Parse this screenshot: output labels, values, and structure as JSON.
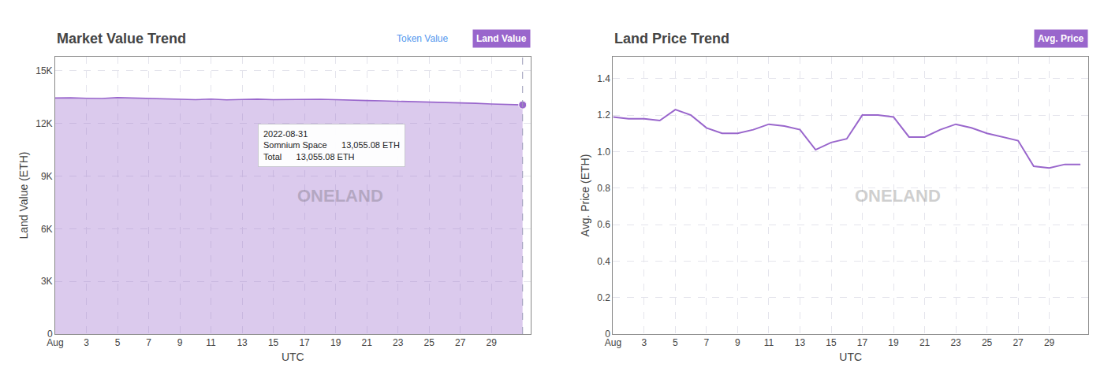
{
  "chart_data": [
    {
      "type": "area",
      "title": "Market Value Trend",
      "x_label": "UTC",
      "y_label": "Land Value (ETH)",
      "x": [
        1,
        2,
        3,
        4,
        5,
        6,
        7,
        8,
        9,
        10,
        11,
        12,
        13,
        14,
        15,
        16,
        17,
        18,
        19,
        20,
        21,
        22,
        23,
        24,
        25,
        26,
        27,
        28,
        29,
        30,
        31
      ],
      "series": [
        {
          "name": "Land Value",
          "type": "area",
          "color": "#9966cc",
          "values": [
            13450,
            13460,
            13435,
            13420,
            13470,
            13445,
            13420,
            13390,
            13365,
            13355,
            13385,
            13345,
            13365,
            13380,
            13355,
            13365,
            13395,
            13375,
            13355,
            13345,
            13305,
            13285,
            13265,
            13245,
            13205,
            13185,
            13165,
            13145,
            13105,
            13085,
            13055
          ]
        },
        {
          "type": "scatter",
          "color": "#9966cc",
          "x": [
            31
          ],
          "values": [
            13055
          ]
        }
      ],
      "xlim": [
        1,
        31.5
      ],
      "xticks": [
        {
          "value": 1,
          "label": "Aug"
        },
        3,
        5,
        7,
        9,
        11,
        13,
        15,
        17,
        19,
        21,
        23,
        25,
        27,
        29
      ],
      "ylim": [
        0,
        15800
      ],
      "yticks": [
        0,
        {
          "value": 3000,
          "label": "3K"
        },
        {
          "value": 6000,
          "label": "6K"
        },
        {
          "value": 9000,
          "label": "9K"
        },
        {
          "value": 12000,
          "label": "12K"
        },
        {
          "value": 15000,
          "label": "15K"
        }
      ],
      "grid": true,
      "annotations": [
        {
          "text": "Token Value",
          "color": "#5599ee"
        },
        {
          "text": "ONELAND"
        },
        {
          "title": "2022-08-31",
          "rows": [
            [
              "Somnium Space",
              "13,055.08 ETH"
            ],
            [
              "Total",
              "13,055.08 ETH"
            ]
          ]
        }
      ]
    },
    {
      "type": "line",
      "title": "Land Price Trend",
      "x_label": "UTC",
      "y_label": "Avg. Price (ETH)",
      "x": [
        1,
        2,
        3,
        4,
        5,
        6,
        7,
        8,
        9,
        10,
        11,
        12,
        13,
        14,
        15,
        16,
        17,
        18,
        19,
        20,
        21,
        22,
        23,
        24,
        25,
        26,
        27,
        28,
        29,
        30,
        31
      ],
      "series": [
        {
          "name": "Avg. Price",
          "type": "line",
          "color": "#9966cc",
          "values": [
            1.19,
            1.18,
            1.18,
            1.17,
            1.23,
            1.2,
            1.13,
            1.1,
            1.1,
            1.12,
            1.15,
            1.14,
            1.12,
            1.01,
            1.05,
            1.07,
            1.2,
            1.2,
            1.19,
            1.08,
            1.08,
            1.12,
            1.15,
            1.13,
            1.1,
            1.08,
            1.06,
            0.92,
            0.91,
            0.93,
            0.93
          ]
        }
      ],
      "xlim": [
        1,
        31.5
      ],
      "xticks": [
        {
          "value": 1,
          "label": "Aug"
        },
        3,
        5,
        7,
        9,
        11,
        13,
        15,
        17,
        19,
        21,
        23,
        25,
        27,
        29
      ],
      "ylim": [
        0,
        1.52
      ],
      "yticks": [
        0,
        0.2,
        0.4,
        0.6,
        0.8,
        {
          "value": 1.0,
          "label": "1.0"
        },
        1.2,
        1.4
      ],
      "grid": true,
      "annotations": [
        {
          "text": "ONELAND"
        }
      ]
    }
  ]
}
